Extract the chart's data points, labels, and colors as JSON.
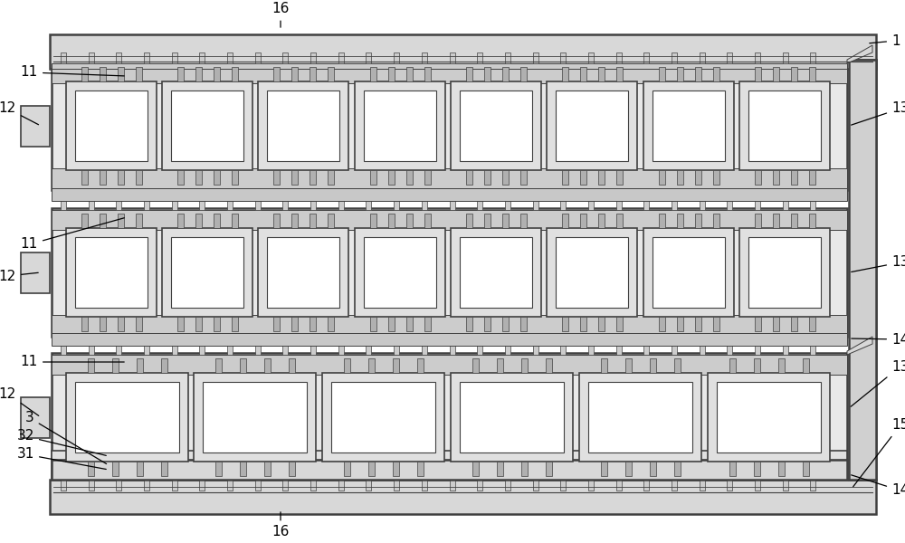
{
  "bg_color": "#ffffff",
  "lc": "#404040",
  "lw_main": 1.8,
  "lw_med": 1.2,
  "lw_thin": 0.7,
  "fig_w": 10.0,
  "fig_h": 6.0,
  "dpi": 100,
  "fc_frame": "#d8d8d8",
  "fc_tray": "#e8e8e8",
  "fc_rail": "#cccccc",
  "fc_chip_outer": "#e0e0e0",
  "fc_chip_inner": "#f8f8f8",
  "fc_pin": "#b0b0b0",
  "fc_wall": "#d0d0d0",
  "fc_white": "#ffffff"
}
